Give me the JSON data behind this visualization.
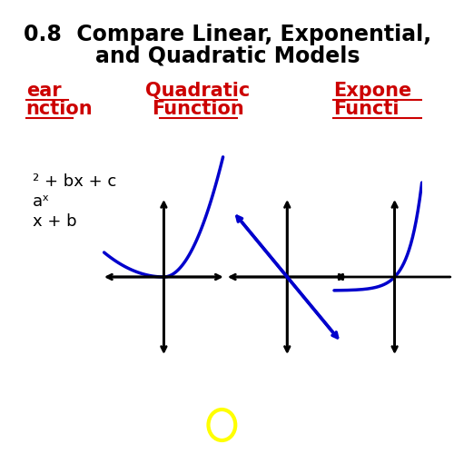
{
  "title_line1": "0.8  Compare Linear, Exponential,",
  "title_line2": "and Quadratic Models",
  "label_linear_line1": "ear",
  "label_linear_line2": "nction",
  "label_quadratic_line1": "Quadratic",
  "label_quadratic_line2": "Function",
  "label_exponential_line1": "Expone",
  "label_exponential_line2": "Functi",
  "formula_quadratic": "² + bx + c",
  "formula_exponential": "aˣ",
  "formula_linear": "x + b",
  "bg_color": "#ffffff",
  "title_color": "#000000",
  "label_color": "#cc0000",
  "curve_color": "#0000cc",
  "axis_color": "#000000",
  "circle_color": "#ffff00",
  "title_fontsize": 17,
  "label_fontsize": 15,
  "formula_fontsize": 13
}
